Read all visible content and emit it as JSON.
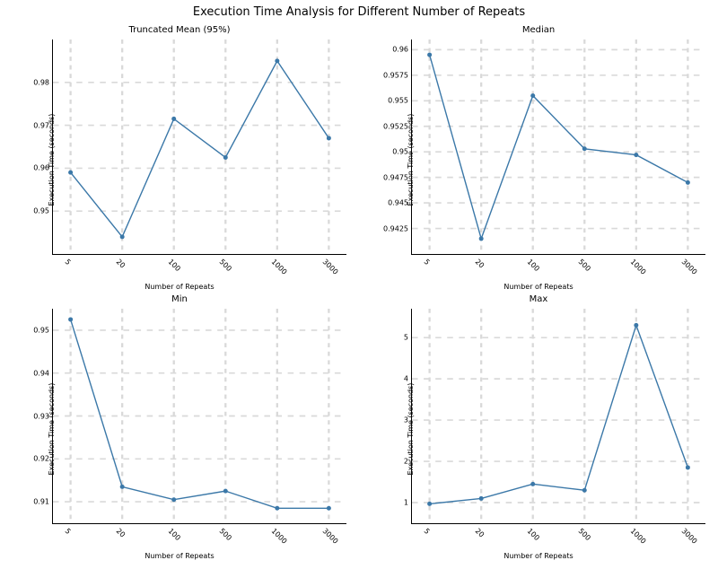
{
  "suptitle": "Execution Time Analysis for Different Number of Repeats",
  "xlabel": "Number of Repeats",
  "ylabel": "Execution Time (seconds)",
  "categories": [
    "5",
    "20",
    "100",
    "500",
    "1000",
    "3000"
  ],
  "panel_title_fontsize": 10,
  "tick_fontsize": 8,
  "label_fontsize": 8,
  "series_color": "#3b78a8",
  "grid_color": "#d9d9d9",
  "background_color": "#ffffff",
  "marker_radius": 2.5,
  "line_width": 1.4,
  "xtick_rotation": 45,
  "layout": "2x2",
  "panels": [
    {
      "title": "Truncated Mean (95%)",
      "values": [
        0.959,
        0.944,
        0.9715,
        0.9625,
        0.985,
        0.967
      ],
      "ylim": [
        0.94,
        0.99
      ],
      "yticks": [
        0.95,
        0.96,
        0.97,
        0.98
      ]
    },
    {
      "title": "Median",
      "values": [
        0.9595,
        0.9415,
        0.9555,
        0.9503,
        0.9497,
        0.947
      ],
      "ylim": [
        0.94,
        0.961
      ],
      "yticks": [
        0.9425,
        0.945,
        0.9475,
        0.95,
        0.9525,
        0.955,
        0.9575,
        0.96
      ]
    },
    {
      "title": "Min",
      "values": [
        0.9525,
        0.9135,
        0.9105,
        0.9125,
        0.9085,
        0.9085
      ],
      "ylim": [
        0.905,
        0.955
      ],
      "yticks": [
        0.91,
        0.92,
        0.93,
        0.94,
        0.95
      ]
    },
    {
      "title": "Max",
      "values": [
        0.97,
        1.1,
        1.45,
        1.3,
        5.3,
        1.85
      ],
      "ylim": [
        0.5,
        5.7
      ],
      "yticks": [
        1,
        2,
        3,
        4,
        5
      ]
    }
  ]
}
